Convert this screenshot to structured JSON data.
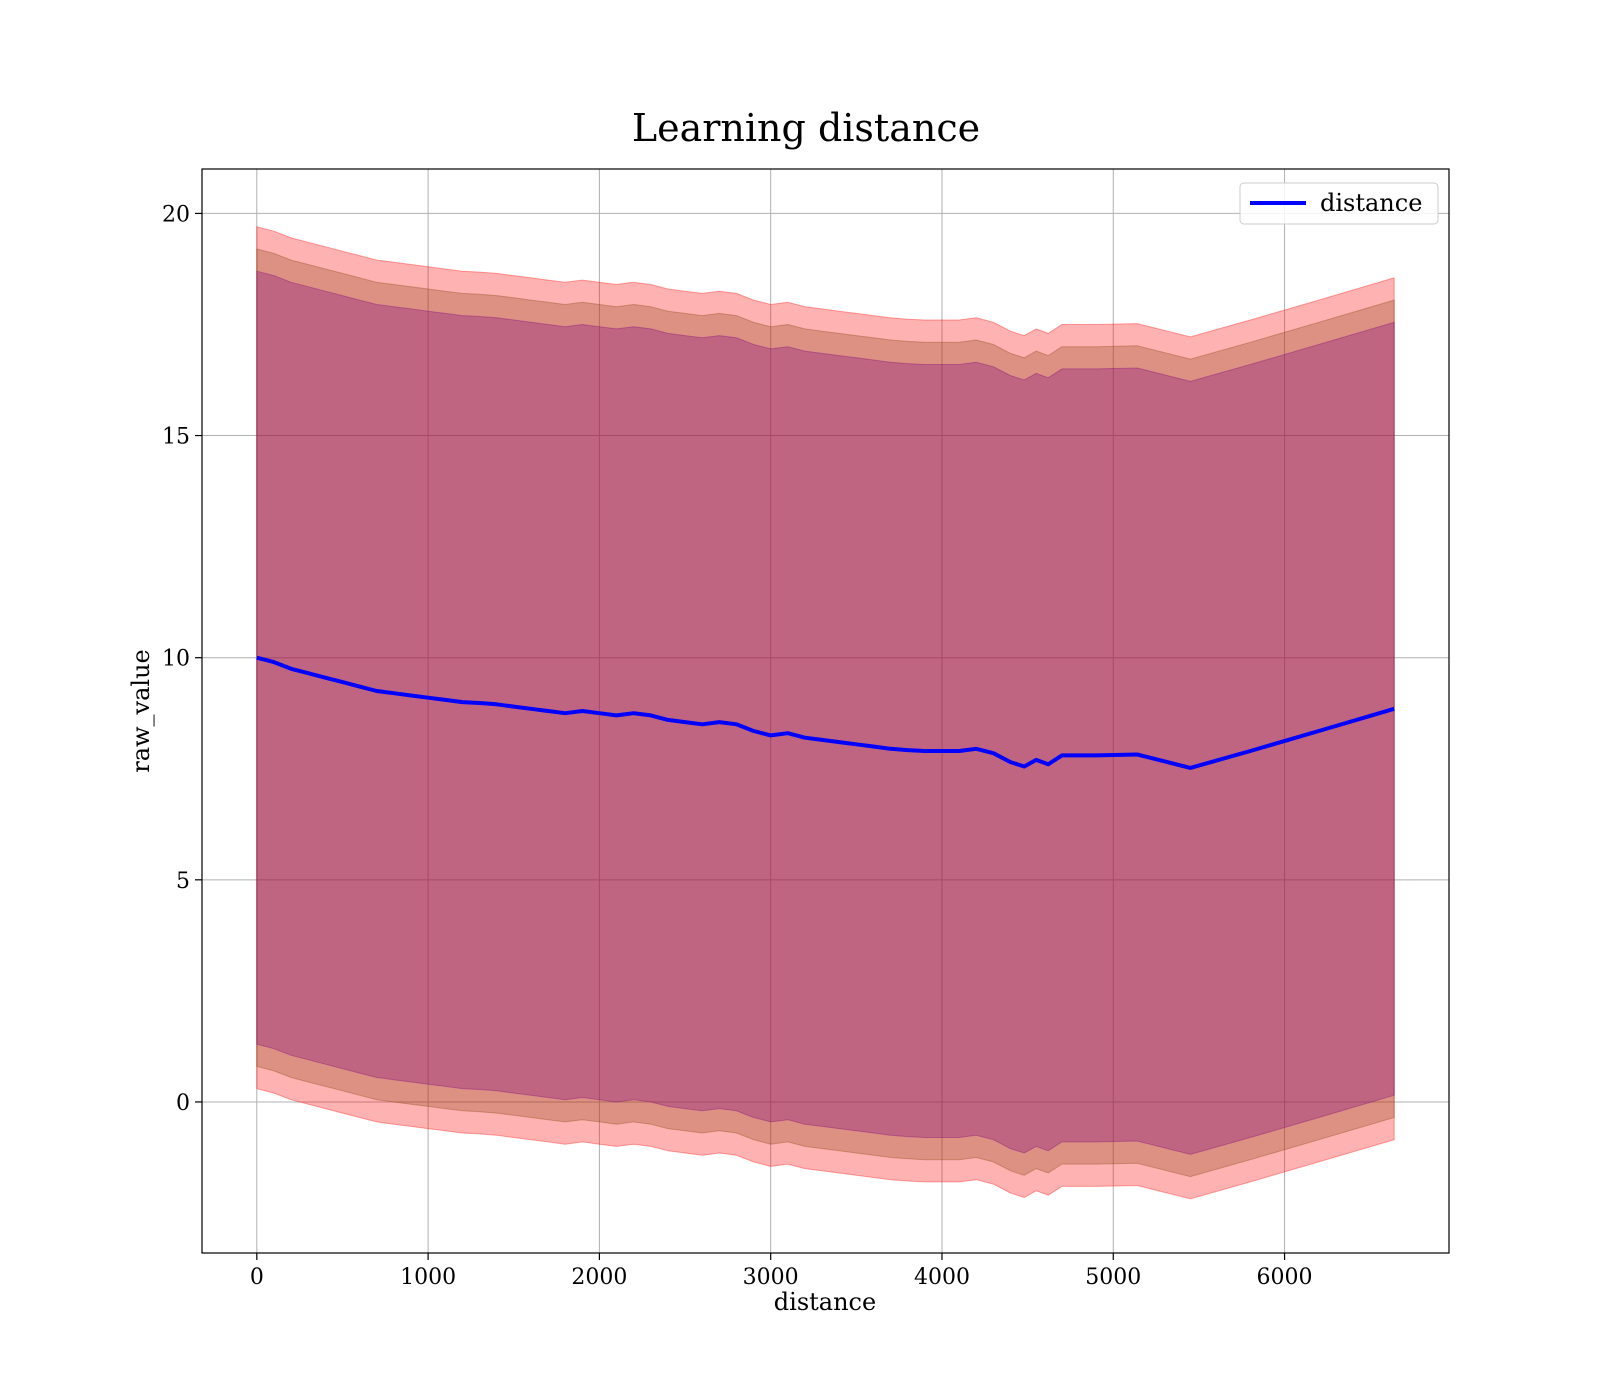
{
  "chart_data": {
    "type": "area",
    "title": "Learning distance",
    "xlabel": "distance",
    "ylabel": "raw_value",
    "xlim": [
      -320,
      6960
    ],
    "ylim": [
      -3.4,
      21
    ],
    "xticks": [
      0,
      1000,
      2000,
      3000,
      4000,
      5000,
      6000
    ],
    "yticks": [
      0,
      5,
      10,
      15,
      20
    ],
    "grid": true,
    "legend_position": "top-right",
    "colors": {
      "line": "#0000ff",
      "band_outer": "#ff0000",
      "band_middle": "#8b4513",
      "band_inner": "#800080",
      "grid": "#b0b0b0"
    },
    "x": [
      0,
      100,
      200,
      300,
      400,
      500,
      600,
      700,
      800,
      900,
      1000,
      1100,
      1200,
      1300,
      1400,
      1500,
      1600,
      1700,
      1800,
      1900,
      2000,
      2100,
      2200,
      2300,
      2400,
      2500,
      2600,
      2700,
      2800,
      2900,
      3000,
      3100,
      3200,
      3300,
      3400,
      3500,
      3600,
      3700,
      3800,
      3900,
      4000,
      4100,
      4200,
      4300,
      4400,
      4480,
      4550,
      4620,
      4700,
      4900,
      5140,
      5450,
      5800,
      6200,
      6640
    ],
    "series": [
      {
        "name": "distance",
        "values": [
          10.0,
          9.9,
          9.75,
          9.65,
          9.55,
          9.45,
          9.35,
          9.25,
          9.2,
          9.15,
          9.1,
          9.05,
          9.0,
          8.98,
          8.95,
          8.9,
          8.85,
          8.8,
          8.75,
          8.8,
          8.75,
          8.7,
          8.75,
          8.7,
          8.6,
          8.55,
          8.5,
          8.55,
          8.5,
          8.35,
          8.25,
          8.3,
          8.2,
          8.15,
          8.1,
          8.05,
          8.0,
          7.95,
          7.92,
          7.9,
          7.9,
          7.9,
          7.95,
          7.85,
          7.65,
          7.55,
          7.7,
          7.6,
          7.8,
          7.8,
          7.82,
          7.52,
          7.9,
          8.35,
          8.85
        ]
      }
    ],
    "bands": [
      {
        "color": "outer",
        "offset": 9.7
      },
      {
        "color": "middle",
        "offset": 9.2
      },
      {
        "color": "inner",
        "offset": 8.7
      }
    ],
    "legend": [
      "distance"
    ]
  }
}
